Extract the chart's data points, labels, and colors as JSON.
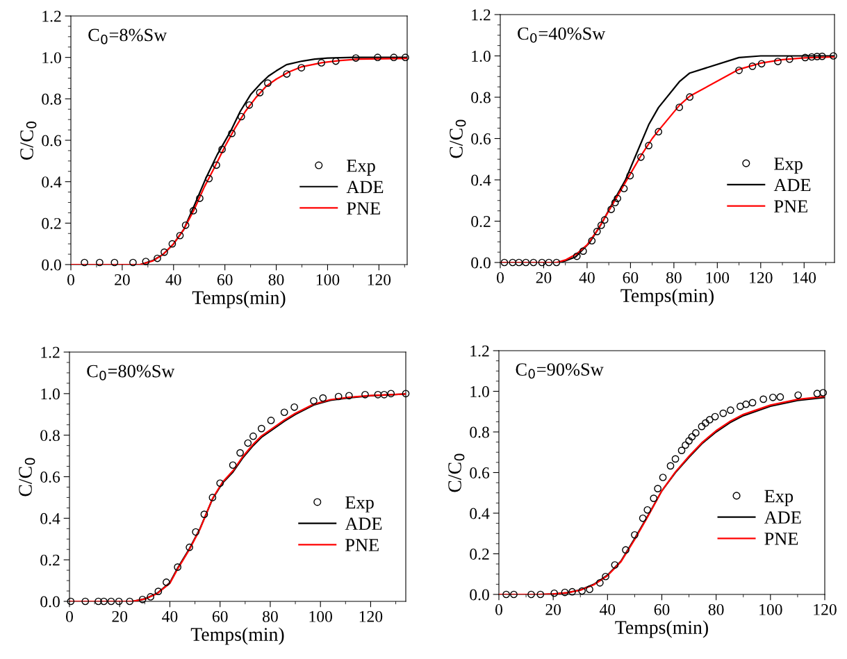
{
  "chart_data": [
    {
      "type": "line",
      "xlabel": "Temps(min)",
      "ylabel": "C/C$_{0}$",
      "annotations": [
        "C$_{0}$=8%Sw"
      ],
      "xlim": [
        0,
        131
      ],
      "xticks": [
        0,
        20,
        40,
        60,
        80,
        100,
        120
      ],
      "ylim": [
        0,
        1.2
      ],
      "yticks": [
        {
          "value": 0,
          "label": "0.0"
        },
        {
          "value": 0.2,
          "label": "0.2"
        },
        {
          "value": 0.4,
          "label": "0.4"
        },
        {
          "value": 0.6,
          "label": "0.6"
        },
        {
          "value": 0.8,
          "label": "0.8"
        },
        {
          "value": 1.0,
          "label": "1.0"
        },
        {
          "value": 1.2,
          "label": "1.2"
        }
      ],
      "legend": "right",
      "grid": false,
      "series": [
        {
          "name": "Exp",
          "type": "scatter",
          "marker": "circle",
          "color": "#000000",
          "x": [
            5.3,
            11.2,
            17,
            24.2,
            29.2,
            33.7,
            36.4,
            39.5,
            42.5,
            44.7,
            47.7,
            50.2,
            53.8,
            56.7,
            58.9,
            62.7,
            66.4,
            69.5,
            73.6,
            76.7,
            84.1,
            89.8,
            97.6,
            103.2,
            111,
            119.5,
            125.8,
            130.3
          ],
          "values": [
            0.01,
            0.01,
            0.01,
            0.01,
            0.015,
            0.03,
            0.06,
            0.1,
            0.14,
            0.19,
            0.26,
            0.32,
            0.415,
            0.48,
            0.556,
            0.633,
            0.714,
            0.77,
            0.83,
            0.876,
            0.92,
            0.95,
            0.974,
            0.982,
            0.997,
            1.0,
            1.0,
            1.0
          ]
        },
        {
          "name": "ADE",
          "color": "#000000",
          "x": [
            0,
            20,
            27,
            32,
            36,
            40,
            44,
            48,
            52.6,
            57,
            62.5,
            66,
            70,
            74,
            77,
            80,
            84,
            90,
            95,
            100,
            110,
            131
          ],
          "values": [
            0,
            0,
            0,
            0.02,
            0.05,
            0.1,
            0.17,
            0.283,
            0.417,
            0.53,
            0.65,
            0.74,
            0.82,
            0.875,
            0.91,
            0.935,
            0.965,
            0.982,
            0.992,
            0.997,
            1.0,
            1.0
          ]
        },
        {
          "name": "PNE",
          "color": "#ff0000",
          "x": [
            0,
            20,
            27,
            32,
            36,
            40,
            44,
            48,
            52,
            56,
            60,
            64,
            68,
            72,
            76,
            80,
            85,
            90,
            98,
            105,
            112,
            131
          ],
          "values": [
            0,
            0,
            0,
            0.018,
            0.05,
            0.1,
            0.17,
            0.265,
            0.375,
            0.47,
            0.57,
            0.66,
            0.74,
            0.805,
            0.86,
            0.895,
            0.93,
            0.955,
            0.975,
            0.985,
            0.992,
            0.995
          ]
        }
      ]
    },
    {
      "type": "line",
      "xlabel": "Temps(min)",
      "ylabel": "C/C$_{0}$",
      "annotations": [
        "C$_{0}$=40%Sw"
      ],
      "xlim": [
        0,
        154
      ],
      "xticks": [
        0,
        20,
        40,
        60,
        80,
        100,
        120,
        140
      ],
      "ylim": [
        0,
        1.2
      ],
      "yticks": [
        {
          "value": 0,
          "label": "0.0"
        },
        {
          "value": 0.2,
          "label": "0.2"
        },
        {
          "value": 0.4,
          "label": "0.4"
        },
        {
          "value": 0.6,
          "label": "0.6"
        },
        {
          "value": 0.8,
          "label": "0.8"
        },
        {
          "value": 1.0,
          "label": "1.0"
        },
        {
          "value": 1.2,
          "label": "1.2"
        }
      ],
      "legend": "right",
      "grid": false,
      "series": [
        {
          "name": "Exp",
          "type": "scatter",
          "marker": "circle",
          "color": "#000000",
          "x": [
            1.9,
            5.7,
            8.6,
            11.8,
            15.3,
            19.2,
            22.4,
            25.9,
            35.3,
            38.2,
            42.2,
            44.6,
            46.5,
            48.1,
            51.1,
            52.9,
            54,
            57,
            59.8,
            64.8,
            68.4,
            72.9,
            82.5,
            87.3,
            110,
            116.2,
            120.4,
            127.9,
            133.3,
            140.5,
            143.5,
            146,
            148.3,
            153.5
          ],
          "values": [
            0,
            0,
            0,
            0,
            0,
            0,
            0,
            0,
            0.03,
            0.055,
            0.105,
            0.15,
            0.18,
            0.206,
            0.257,
            0.29,
            0.31,
            0.358,
            0.42,
            0.51,
            0.566,
            0.633,
            0.751,
            0.801,
            0.93,
            0.95,
            0.962,
            0.973,
            0.984,
            0.992,
            0.995,
            0.997,
            0.998,
            1.0
          ]
        },
        {
          "name": "ADE",
          "color": "#000000",
          "x": [
            0,
            28,
            34.7,
            41,
            46.5,
            52.9,
            57.7,
            62.5,
            68.4,
            72.9,
            82.5,
            87.3,
            110,
            120,
            154
          ],
          "values": [
            0,
            0,
            0.027,
            0.094,
            0.185,
            0.31,
            0.4,
            0.52,
            0.667,
            0.75,
            0.875,
            0.917,
            0.992,
            1.0,
            1.0
          ]
        },
        {
          "name": "PNE",
          "color": "#ff0000",
          "x": [
            0,
            26,
            30,
            35,
            40,
            45,
            50,
            55,
            60,
            65,
            70,
            73,
            82.5,
            87.3,
            110,
            120,
            130,
            140,
            154
          ],
          "values": [
            0,
            0,
            0.012,
            0.04,
            0.085,
            0.16,
            0.25,
            0.34,
            0.43,
            0.52,
            0.6,
            0.64,
            0.76,
            0.805,
            0.935,
            0.965,
            0.982,
            0.99,
            0.995
          ]
        }
      ]
    },
    {
      "type": "line",
      "xlabel": "Temps(min)",
      "ylabel": "C/C$_{0}$",
      "annotations": [
        "C$_{0}$=80%Sw"
      ],
      "xlim": [
        0,
        134
      ],
      "xticks": [
        0,
        20,
        40,
        60,
        80,
        100,
        120
      ],
      "ylim": [
        0,
        1.2
      ],
      "yticks": [
        {
          "value": 0,
          "label": "0.0"
        },
        {
          "value": 0.2,
          "label": "0.2"
        },
        {
          "value": 0.4,
          "label": "0.4"
        },
        {
          "value": 0.6,
          "label": "0.6"
        },
        {
          "value": 0.8,
          "label": "0.8"
        },
        {
          "value": 1.0,
          "label": "1.0"
        },
        {
          "value": 1.2,
          "label": "1.2"
        }
      ],
      "legend": "right",
      "grid": false,
      "series": [
        {
          "name": "Exp",
          "type": "scatter",
          "marker": "circle",
          "color": "#000000",
          "x": [
            0.5,
            6.3,
            11.5,
            13.7,
            16.6,
            19.7,
            24,
            29.1,
            32.3,
            35.4,
            38.6,
            43.1,
            47.8,
            50.3,
            53.7,
            57,
            60,
            65.1,
            68,
            71.1,
            73.2,
            76.5,
            80.3,
            85.6,
            89.6,
            97.3,
            101,
            107.2,
            111.4,
            117.8,
            122.9,
            125.4,
            128.1,
            134
          ],
          "values": [
            0,
            0,
            0,
            0,
            0,
            0,
            0,
            0.009,
            0.022,
            0.048,
            0.092,
            0.165,
            0.26,
            0.334,
            0.419,
            0.5,
            0.569,
            0.656,
            0.715,
            0.762,
            0.795,
            0.832,
            0.871,
            0.91,
            0.935,
            0.965,
            0.979,
            0.986,
            0.99,
            0.995,
            0.995,
            0.995,
            1.0,
            1.0
          ]
        },
        {
          "name": "ADE",
          "color": "#000000",
          "x": [
            0,
            25,
            30,
            35,
            40,
            43.1,
            47.8,
            52,
            57,
            61,
            65.1,
            69,
            73.2,
            76.5,
            80.3,
            85.6,
            90,
            97.3,
            104,
            111.4,
            120,
            134
          ],
          "values": [
            0,
            0,
            0.012,
            0.04,
            0.09,
            0.16,
            0.254,
            0.35,
            0.493,
            0.57,
            0.622,
            0.69,
            0.75,
            0.79,
            0.822,
            0.867,
            0.9,
            0.945,
            0.968,
            0.98,
            0.99,
            0.998
          ]
        },
        {
          "name": "PNE",
          "color": "#ff0000",
          "x": [
            0,
            25,
            30,
            35,
            40,
            43.1,
            47.8,
            52,
            57,
            61,
            65.1,
            69,
            73.2,
            76.5,
            80.3,
            85.6,
            90,
            97.3,
            104,
            111.4,
            120,
            134
          ],
          "values": [
            0,
            0,
            0.011,
            0.038,
            0.087,
            0.156,
            0.25,
            0.348,
            0.495,
            0.574,
            0.628,
            0.696,
            0.756,
            0.796,
            0.828,
            0.873,
            0.905,
            0.949,
            0.971,
            0.982,
            0.991,
            0.998
          ]
        }
      ]
    },
    {
      "type": "line",
      "xlabel": "Temps(min)",
      "ylabel": "C/C$_{0}$",
      "annotations": [
        "C$_{0}$=90%Sw"
      ],
      "xlim": [
        0,
        120
      ],
      "xticks": [
        0,
        20,
        40,
        60,
        80,
        100,
        120
      ],
      "ylim": [
        0,
        1.2
      ],
      "yticks": [
        {
          "value": 0,
          "label": "0.0"
        },
        {
          "value": 0.2,
          "label": "0.2"
        },
        {
          "value": 0.4,
          "label": "0.4"
        },
        {
          "value": 0.6,
          "label": "0.6"
        },
        {
          "value": 0.8,
          "label": "0.8"
        },
        {
          "value": 1.0,
          "label": "1.0"
        },
        {
          "value": 1.2,
          "label": "1.2"
        }
      ],
      "legend": "right",
      "grid": false,
      "series": [
        {
          "name": "Exp",
          "type": "scatter",
          "marker": "circle",
          "color": "#000000",
          "x": [
            2.7,
            5.5,
            11.9,
            15.3,
            20.4,
            24.3,
            27,
            30.6,
            33.4,
            37.2,
            39.3,
            42.7,
            46.7,
            50,
            53,
            54.7,
            57,
            58.5,
            60.4,
            63.2,
            65,
            67.3,
            68.7,
            70,
            71.1,
            72.5,
            74.7,
            76.1,
            77.6,
            79.6,
            82.6,
            85.3,
            88.9,
            91,
            93.4,
            97.4,
            100.9,
            103.6,
            110.2,
            117.2,
            119.4
          ],
          "values": [
            0,
            0,
            0,
            0,
            0.006,
            0.01,
            0.013,
            0.017,
            0.025,
            0.057,
            0.088,
            0.145,
            0.219,
            0.293,
            0.375,
            0.416,
            0.473,
            0.521,
            0.576,
            0.633,
            0.667,
            0.709,
            0.735,
            0.756,
            0.776,
            0.795,
            0.827,
            0.844,
            0.86,
            0.875,
            0.892,
            0.907,
            0.926,
            0.936,
            0.944,
            0.961,
            0.97,
            0.972,
            0.981,
            0.989,
            0.993
          ]
        },
        {
          "name": "ADE",
          "color": "#000000",
          "x": [
            0,
            15,
            20,
            25,
            30,
            35,
            40,
            45,
            50,
            55,
            60,
            65,
            70,
            75,
            80,
            85,
            90,
            100,
            110,
            120
          ],
          "values": [
            0,
            0,
            0.002,
            0.008,
            0.022,
            0.05,
            0.095,
            0.165,
            0.275,
            0.39,
            0.51,
            0.6,
            0.675,
            0.745,
            0.8,
            0.845,
            0.88,
            0.927,
            0.955,
            0.97
          ]
        },
        {
          "name": "PNE",
          "color": "#ff0000",
          "x": [
            0,
            15,
            20,
            25,
            30,
            35,
            40,
            45,
            50,
            55,
            60,
            65,
            70,
            75,
            80,
            85,
            90,
            100,
            110,
            120
          ],
          "values": [
            0,
            0,
            0.002,
            0.008,
            0.021,
            0.048,
            0.092,
            0.162,
            0.27,
            0.387,
            0.51,
            0.603,
            0.68,
            0.75,
            0.806,
            0.851,
            0.886,
            0.932,
            0.96,
            0.975
          ]
        }
      ]
    }
  ]
}
